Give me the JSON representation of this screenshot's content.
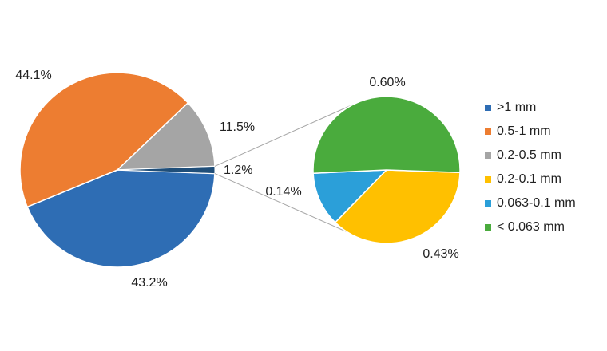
{
  "chart_data": {
    "type": "pie-of-pie",
    "categories": [
      ">1 mm",
      "0.5-1 mm",
      "0.2-0.5 mm",
      "0.2-0.1 mm",
      "0.063-0.1 mm",
      "< 0.063 mm"
    ],
    "values": [
      43.2,
      44.1,
      11.5,
      0.43,
      0.14,
      0.6
    ],
    "value_labels": [
      "43.2%",
      "44.1%",
      "11.5%",
      "0.43%",
      "0.14%",
      "0.60%"
    ],
    "colors": [
      "#2e6db4",
      "#ed7d31",
      "#a5a5a5",
      "#ffc000",
      "#2b9fd9",
      "#4aab3d"
    ],
    "split": 3,
    "other": {
      "value": 1.2,
      "label": "1.2%",
      "color": "#1f4e79"
    },
    "legend": "right"
  }
}
